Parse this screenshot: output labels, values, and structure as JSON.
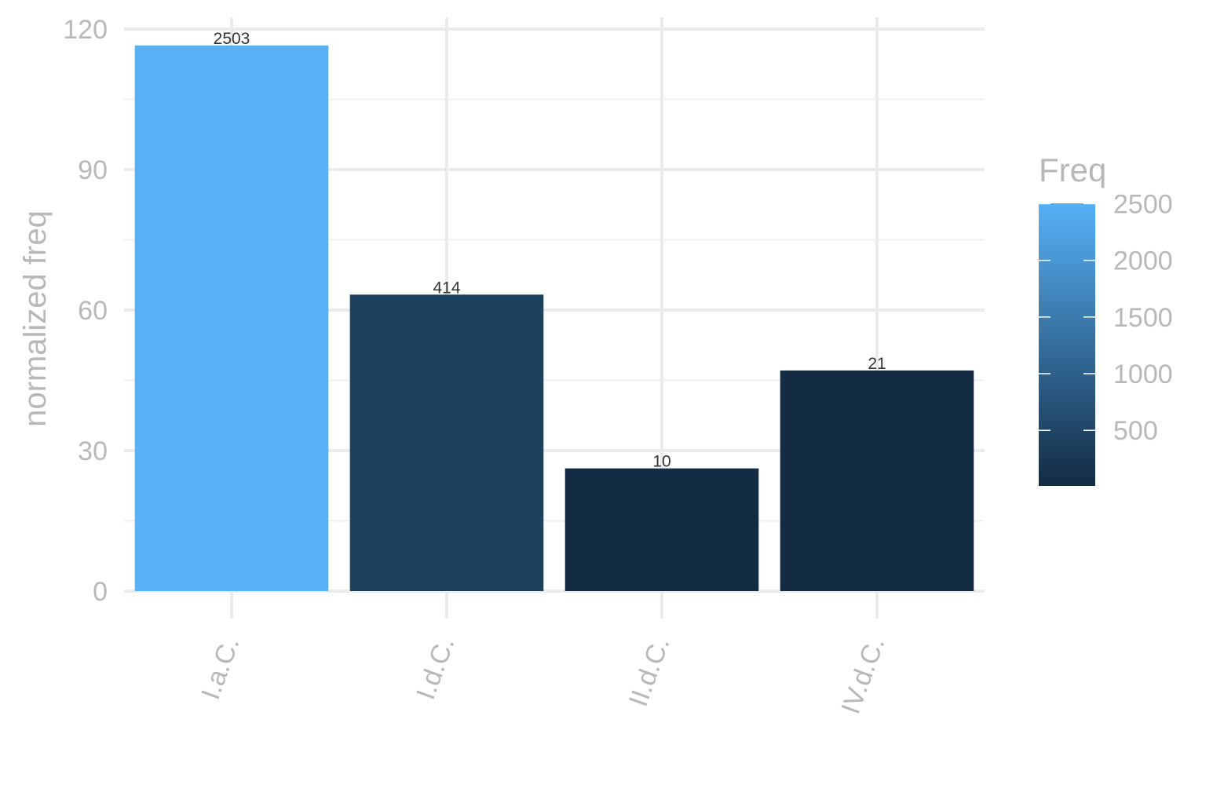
{
  "chart_data": {
    "type": "bar",
    "categories": [
      "I.a.C.",
      "I.d.C.",
      "II.d.C.",
      "IV.d.C."
    ],
    "values": [
      116.5,
      63.3,
      26.2,
      47.1
    ],
    "freq": [
      2503,
      414,
      10,
      21
    ],
    "data_labels": [
      "2503",
      "414",
      "10",
      "21"
    ],
    "title": "",
    "xlabel": "",
    "ylabel": "normalized freq",
    "ylim": [
      0,
      120
    ],
    "yticks": [
      0,
      30,
      60,
      90,
      120
    ],
    "grid": true,
    "legend": {
      "title": "Freq",
      "placement": "right",
      "breaks": [
        500,
        1000,
        1500,
        2000,
        2500
      ],
      "range": [
        10,
        2503
      ],
      "color_low": "#132b43",
      "color_high": "#56b1f7"
    }
  }
}
